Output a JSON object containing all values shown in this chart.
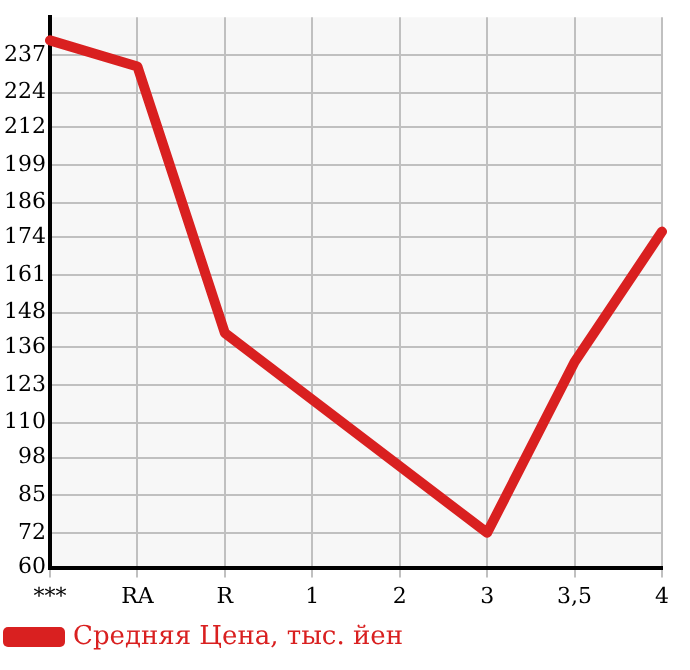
{
  "chart_data": {
    "type": "line",
    "categories": [
      "***",
      "RA",
      "R",
      "1",
      "2",
      "3",
      "3,5",
      "4"
    ],
    "series": [
      {
        "name": "Средняя Цена, тыс. йен",
        "color": "#d92020",
        "values": [
          242,
          233,
          141,
          null,
          null,
          72,
          131,
          176
        ]
      }
    ],
    "ylim": [
      60,
      250
    ],
    "yticks": [
      60,
      72,
      85,
      98,
      110,
      123,
      136,
      148,
      161,
      174,
      186,
      199,
      212,
      224,
      237
    ],
    "grid": true,
    "legend": "bottom left",
    "marker": "none",
    "line_style": "solid"
  }
}
